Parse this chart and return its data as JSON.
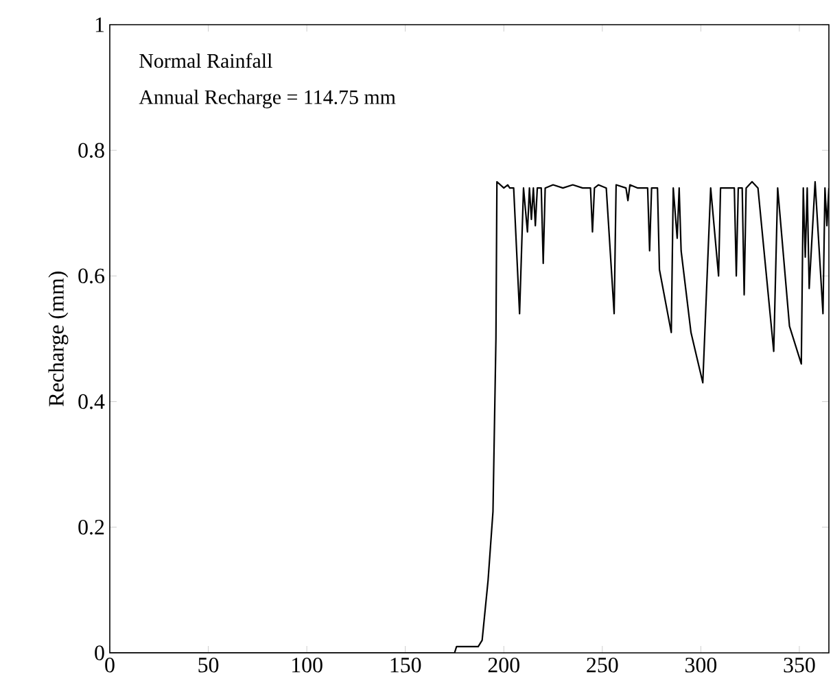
{
  "chart_data": {
    "type": "line",
    "ylabel": "Recharge (mm)",
    "annotations": [
      "Normal Rainfall",
      "Annual Recharge = 114.75 mm"
    ],
    "x": [
      0,
      175,
      176,
      187,
      189,
      192,
      194.5,
      196,
      196.5,
      200,
      202,
      203,
      205,
      208,
      210,
      212,
      213,
      214,
      215,
      216,
      217,
      219,
      220,
      221,
      225,
      230,
      235,
      240,
      244,
      245,
      246,
      248,
      252,
      256,
      257,
      262,
      263,
      264,
      268,
      273,
      274,
      275,
      278,
      279,
      285,
      286,
      288,
      289,
      290,
      295,
      301,
      305,
      309,
      310,
      317,
      318,
      319,
      321,
      322,
      323,
      326,
      329,
      337,
      339,
      345,
      349,
      351,
      352,
      353,
      354,
      355,
      358,
      362,
      363,
      364,
      365
    ],
    "series": [
      {
        "color": "#000000",
        "values": [
          0,
          0,
          0.01,
          0.01,
          0.02,
          0.115,
          0.225,
          0.5,
          0.75,
          0.74,
          0.745,
          0.74,
          0.74,
          0.54,
          0.74,
          0.67,
          0.74,
          0.69,
          0.74,
          0.68,
          0.74,
          0.74,
          0.62,
          0.74,
          0.745,
          0.74,
          0.745,
          0.74,
          0.74,
          0.67,
          0.74,
          0.745,
          0.74,
          0.54,
          0.745,
          0.74,
          0.72,
          0.745,
          0.74,
          0.74,
          0.64,
          0.74,
          0.74,
          0.61,
          0.51,
          0.74,
          0.66,
          0.74,
          0.64,
          0.51,
          0.43,
          0.74,
          0.6,
          0.74,
          0.74,
          0.6,
          0.74,
          0.74,
          0.57,
          0.74,
          0.75,
          0.74,
          0.48,
          0.74,
          0.52,
          0.48,
          0.46,
          0.74,
          0.63,
          0.74,
          0.58,
          0.75,
          0.54,
          0.74,
          0.68,
          0.74
        ]
      }
    ],
    "xlim": [
      0,
      365
    ],
    "xticks": [
      0,
      50,
      100,
      150,
      200,
      250,
      300,
      350
    ],
    "ylim": [
      0,
      1
    ],
    "yticks": [
      0,
      0.2,
      0.4,
      0.6,
      0.8,
      1
    ],
    "marker": "none",
    "line_style": "solid"
  }
}
